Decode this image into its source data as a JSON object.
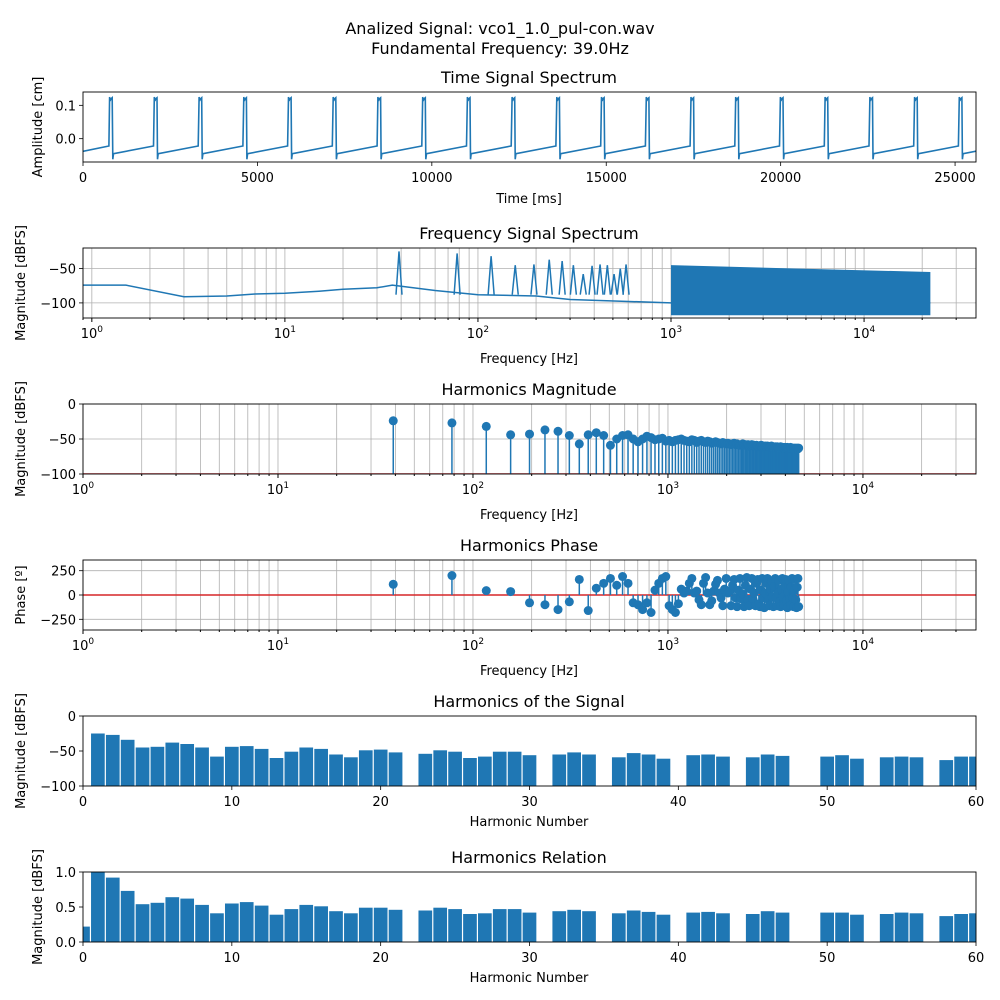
{
  "figure": {
    "title_line1": "Analized Signal: vco1_1.0_pul-con.wav",
    "title_line2": "Fundamental Frequency: 39.0Hz"
  },
  "colors": {
    "series": "#1f77b4",
    "baseline": "#d62728",
    "grid": "#b0b0b0"
  },
  "chart_data": [
    {
      "id": "time",
      "type": "line",
      "title": "Time Signal Spectrum",
      "xlabel": "Time [ms]",
      "ylabel": "Amplitude [cm]",
      "xlim": [
        0,
        25600
      ],
      "ylim": [
        -0.07,
        0.14
      ],
      "xticks": [
        "0",
        "5000",
        "10000",
        "15000",
        "20000",
        "25000"
      ],
      "yticks": [
        "0.0",
        "0.1"
      ],
      "grid": false,
      "waveform": {
        "period_ms": 1282,
        "first_rise_ms": 763,
        "low_start": -0.038,
        "low_end": -0.022,
        "peak": 0.125,
        "trough": -0.062,
        "plateau": -0.045
      }
    },
    {
      "id": "freq",
      "type": "line",
      "title": "Frequency Signal Spectrum",
      "xlabel": "Frequency [Hz]",
      "ylabel": "Magnitude [dBFS]",
      "xscale": "log",
      "xlim": [
        0.9,
        38000
      ],
      "ylim": [
        -122,
        -20
      ],
      "xticks": [
        "10^0",
        "10^1",
        "10^2",
        "10^3",
        "10^4"
      ],
      "yticks": [
        "−50",
        "−100"
      ],
      "grid": true,
      "outline": [
        [
          0.9,
          -74
        ],
        [
          1.5,
          -74
        ],
        [
          3,
          -91
        ],
        [
          5,
          -90
        ],
        [
          7,
          -87
        ],
        [
          10,
          -86
        ],
        [
          15,
          -83
        ],
        [
          20,
          -80
        ],
        [
          30,
          -78
        ],
        [
          36,
          -74
        ],
        [
          60,
          -82
        ],
        [
          100,
          -88
        ],
        [
          200,
          -90
        ],
        [
          300,
          -95
        ],
        [
          1000,
          -100
        ],
        [
          10000,
          -100
        ],
        [
          22050,
          -100
        ]
      ],
      "peaks": [
        [
          39,
          -25
        ],
        [
          78,
          -28
        ],
        [
          117,
          -32
        ],
        [
          156,
          -45
        ],
        [
          195,
          -44
        ],
        [
          234,
          -37
        ],
        [
          273,
          -39
        ],
        [
          312,
          -45
        ],
        [
          351,
          -58
        ],
        [
          390,
          -46
        ],
        [
          429,
          -44
        ],
        [
          468,
          -45
        ],
        [
          507,
          -58
        ],
        [
          546,
          -50
        ],
        [
          585,
          -44
        ]
      ],
      "floor_fill": {
        "from_hz": 1000,
        "to_hz": 22050,
        "top_start": -45,
        "top_end": -55,
        "bottom": -118
      }
    },
    {
      "id": "hmag",
      "type": "stem",
      "title": "Harmonics Magnitude",
      "xlabel": "Frequency [Hz]",
      "ylabel": "Magnitude [dBFS]",
      "xscale": "log",
      "xlim": [
        1,
        38000
      ],
      "ylim": [
        -100,
        0
      ],
      "xticks": [
        "10^0",
        "10^1",
        "10^2",
        "10^3",
        "10^4"
      ],
      "yticks": [
        "0",
        "−50",
        "−100"
      ],
      "grid": true,
      "baseline": -100,
      "fundamental_hz": 39,
      "values": [
        -24,
        -27,
        -32,
        -44,
        -43,
        -37,
        -39,
        -45,
        -57,
        -44,
        -41,
        -45,
        -59,
        -50,
        -45,
        -44,
        -50,
        -54,
        -50,
        -46,
        -48,
        -51,
        -50,
        -49,
        -53,
        -52,
        -54,
        -52,
        -51,
        -50,
        -52,
        -53,
        -54,
        -51,
        -52,
        -55,
        -53,
        -52,
        -54,
        -55,
        -53,
        -54,
        -56,
        -55,
        -54,
        -55,
        -56,
        -57,
        -55,
        -56,
        -57,
        -56,
        -57,
        -58,
        -57,
        -56,
        -58,
        -57,
        -58,
        -59,
        -58,
        -57,
        -59,
        -58,
        -59,
        -58,
        -60,
        -59,
        -58,
        -60,
        -59,
        -60,
        -59,
        -60,
        -61,
        -60,
        -59,
        -61,
        -60,
        -61,
        -60,
        -61,
        -60,
        -61,
        -62,
        -61,
        -60,
        -62,
        -61,
        -62,
        -61,
        -62,
        -61,
        -62,
        -63,
        -62,
        -61,
        -63,
        -62,
        -63,
        -62,
        -63,
        -62,
        -63,
        -62,
        -63,
        -64,
        -63,
        -62,
        -63,
        -64,
        -63,
        -64,
        -63,
        -64,
        -63,
        -64,
        -63,
        -64,
        -63
      ]
    },
    {
      "id": "hphase",
      "type": "stem",
      "title": "Harmonics Phase",
      "xlabel": "Frequency [Hz]",
      "ylabel": "Phase [º]",
      "xscale": "log",
      "xlim": [
        1,
        38000
      ],
      "ylim": [
        -360,
        360
      ],
      "xticks": [
        "10^0",
        "10^1",
        "10^2",
        "10^3",
        "10^4"
      ],
      "yticks": [
        "250",
        "0",
        "−250"
      ],
      "grid": true,
      "baseline": 0,
      "fundamental_hz": 39,
      "values": [
        110,
        200,
        45,
        35,
        -80,
        -100,
        -150,
        -70,
        160,
        -160,
        70,
        120,
        170,
        100,
        190,
        120,
        -80,
        -100,
        -150,
        -80,
        -180,
        50,
        120,
        170,
        190,
        -110,
        -150,
        -180,
        -90,
        60,
        20,
        40,
        120,
        170,
        20,
        40,
        -50,
        -100,
        120,
        180,
        20,
        -100,
        -60,
        40,
        110,
        150,
        20,
        -30,
        -110,
        60,
        170,
        20,
        40,
        -110,
        100,
        160,
        -30,
        -120,
        50,
        170,
        -40,
        10,
        -120,
        100,
        180,
        -50,
        -110,
        60,
        170,
        -40,
        20,
        -110,
        120,
        160,
        -90,
        -120,
        50,
        170,
        -30,
        -130,
        20,
        120,
        170,
        -50,
        -110,
        60,
        140,
        -20,
        -120,
        90,
        170,
        -30,
        -110,
        20,
        150,
        -70,
        -120,
        60,
        170,
        -20,
        -100,
        90,
        160,
        -60,
        -130,
        30,
        150,
        -40,
        -110,
        80,
        170,
        -30,
        -120,
        50,
        160,
        -50,
        -130,
        80,
        170,
        -120
      ]
    },
    {
      "id": "hsig",
      "type": "bar",
      "title": "Harmonics of the Signal",
      "xlabel": "Harmonic Number",
      "ylabel": "Magnitude [dBFS]",
      "xlim": [
        0,
        60
      ],
      "ylim": [
        -100,
        0
      ],
      "xticks": [
        "0",
        "10",
        "20",
        "30",
        "40",
        "50",
        "60"
      ],
      "yticks": [
        "0",
        "−50",
        "−100"
      ],
      "grid": false,
      "bar_base": -100,
      "values": [
        -100,
        -25,
        -27,
        -34,
        -45,
        -44,
        -38,
        -40,
        -45,
        -58,
        -44,
        -43,
        -47,
        -60,
        -51,
        -45,
        -47,
        -55,
        -59,
        -49,
        -48,
        -52,
        -100,
        -54,
        -49,
        -51,
        -60,
        -58,
        -51,
        -51,
        -56,
        -100,
        -55,
        -52,
        -55,
        -100,
        -59,
        -53,
        -55,
        -61,
        -100,
        -56,
        -55,
        -58,
        -100,
        -59,
        -55,
        -57,
        -100,
        -100,
        -58,
        -56,
        -61,
        -100,
        -59,
        -58,
        -59,
        -100,
        -63,
        -58,
        -58
      ]
    },
    {
      "id": "hrel",
      "type": "bar",
      "title": "Harmonics Relation",
      "xlabel": "Harmonic Number",
      "ylabel": "Magnitude [dBFS]",
      "xlim": [
        0,
        60
      ],
      "ylim": [
        0,
        1.0
      ],
      "xticks": [
        "0",
        "10",
        "20",
        "30",
        "40",
        "50",
        "60"
      ],
      "yticks": [
        "1.0",
        "0.5",
        "0.0"
      ],
      "grid": false,
      "bar_base": 0,
      "values": [
        0.22,
        1.0,
        0.92,
        0.73,
        0.54,
        0.56,
        0.64,
        0.62,
        0.53,
        0.41,
        0.55,
        0.57,
        0.52,
        0.39,
        0.47,
        0.53,
        0.51,
        0.44,
        0.41,
        0.49,
        0.49,
        0.46,
        0,
        0.45,
        0.49,
        0.47,
        0.4,
        0.41,
        0.47,
        0.47,
        0.42,
        0,
        0.44,
        0.46,
        0.44,
        0,
        0.41,
        0.45,
        0.43,
        0.39,
        0,
        0.42,
        0.43,
        0.41,
        0,
        0.4,
        0.44,
        0.42,
        0,
        0,
        0.42,
        0.42,
        0.39,
        0,
        0.4,
        0.42,
        0.41,
        0,
        0.37,
        0.4,
        0.41
      ]
    }
  ]
}
